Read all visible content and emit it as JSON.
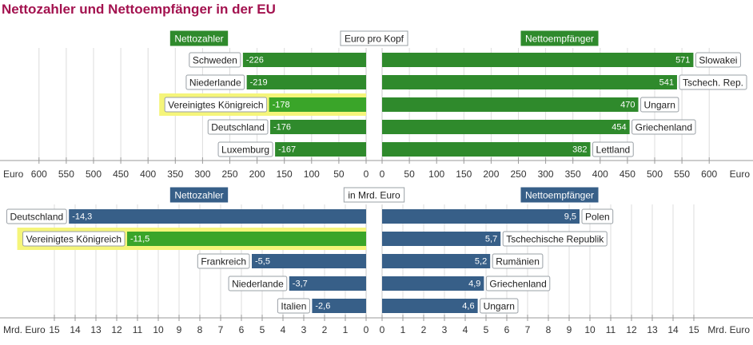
{
  "title": "Nettozahler und Nettoempfänger in der EU",
  "colors": {
    "title": "#a3124f",
    "green_bar": "#2f8a2c",
    "green_highlight": "#3aa529",
    "blue_bar": "#375f88",
    "highlight": "#f5f57a",
    "grid": "#dcdcdc",
    "label_border": "#9aa0a6"
  },
  "chart_data": [
    {
      "type": "bar",
      "title": "Euro pro Kopf",
      "left_header": "Nettozahler",
      "right_header": "Nettoempfänger",
      "left_unit": "Euro",
      "right_unit": "Euro",
      "xlim": [
        0,
        600
      ],
      "ticks": [
        0,
        50,
        100,
        150,
        200,
        250,
        300,
        350,
        400,
        450,
        500,
        550,
        600
      ],
      "highlight_index": 2,
      "payers": [
        {
          "country": "Schweden",
          "value": "-226"
        },
        {
          "country": "Niederlande",
          "value": "-219"
        },
        {
          "country": "Vereinigtes Königreich",
          "value": "-178"
        },
        {
          "country": "Deutschland",
          "value": "-176"
        },
        {
          "country": "Luxemburg",
          "value": "-167"
        }
      ],
      "recipients": [
        {
          "country": "Slowakei",
          "value": "571"
        },
        {
          "country": "Tschech. Rep.",
          "value": "541"
        },
        {
          "country": "Ungarn",
          "value": "470"
        },
        {
          "country": "Griechenland",
          "value": "454"
        },
        {
          "country": "Lettland",
          "value": "382"
        }
      ]
    },
    {
      "type": "bar",
      "title": "in Mrd. Euro",
      "left_header": "Nettozahler",
      "right_header": "Nettoempfänger",
      "left_unit": "Mrd. Euro",
      "right_unit": "Mrd. Euro",
      "xlim": [
        0,
        15
      ],
      "ticks": [
        0,
        1,
        2,
        3,
        4,
        5,
        6,
        7,
        8,
        9,
        10,
        11,
        12,
        13,
        14,
        15
      ],
      "highlight_index": 1,
      "payers": [
        {
          "country": "Deutschland",
          "value": "-14,3"
        },
        {
          "country": "Vereinigtes Königreich",
          "value": "-11,5"
        },
        {
          "country": "Frankreich",
          "value": "-5,5"
        },
        {
          "country": "Niederlande",
          "value": "-3,7"
        },
        {
          "country": "Italien",
          "value": "-2,6"
        }
      ],
      "recipients": [
        {
          "country": "Polen",
          "value": "9,5"
        },
        {
          "country": "Tschechische Republik",
          "value": "5,7"
        },
        {
          "country": "Rumänien",
          "value": "5,2"
        },
        {
          "country": "Griechenland",
          "value": "4,9"
        },
        {
          "country": "Ungarn",
          "value": "4,6"
        }
      ]
    }
  ]
}
